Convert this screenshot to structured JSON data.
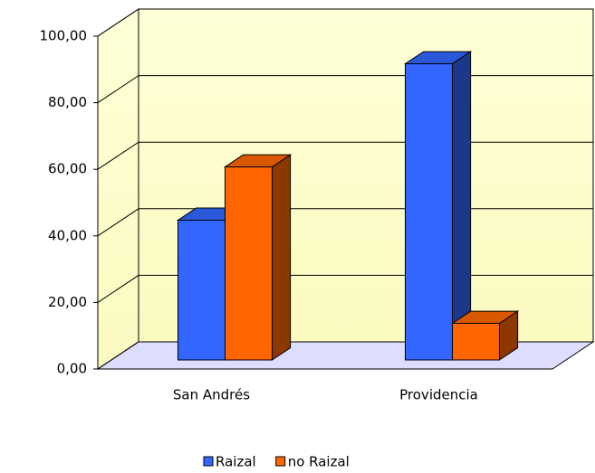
{
  "chart_data": {
    "type": "bar3d",
    "categories": [
      "San Andrés",
      "Providencia"
    ],
    "series": [
      {
        "name": "Raizal",
        "color": "#3366ff",
        "values": [
          42,
          89
        ]
      },
      {
        "name": "no Raizal",
        "color": "#ff6600",
        "values": [
          58,
          11
        ]
      }
    ],
    "ylim": [
      0,
      100
    ],
    "yticks": [
      {
        "value": 0,
        "label": "0,00"
      },
      {
        "value": 20,
        "label": "20,00"
      },
      {
        "value": 40,
        "label": "40,00"
      },
      {
        "value": 60,
        "label": "60,00"
      },
      {
        "value": 80,
        "label": "80,00"
      },
      {
        "value": 100,
        "label": "100,00"
      }
    ],
    "grid": true,
    "legend": "bottom"
  }
}
